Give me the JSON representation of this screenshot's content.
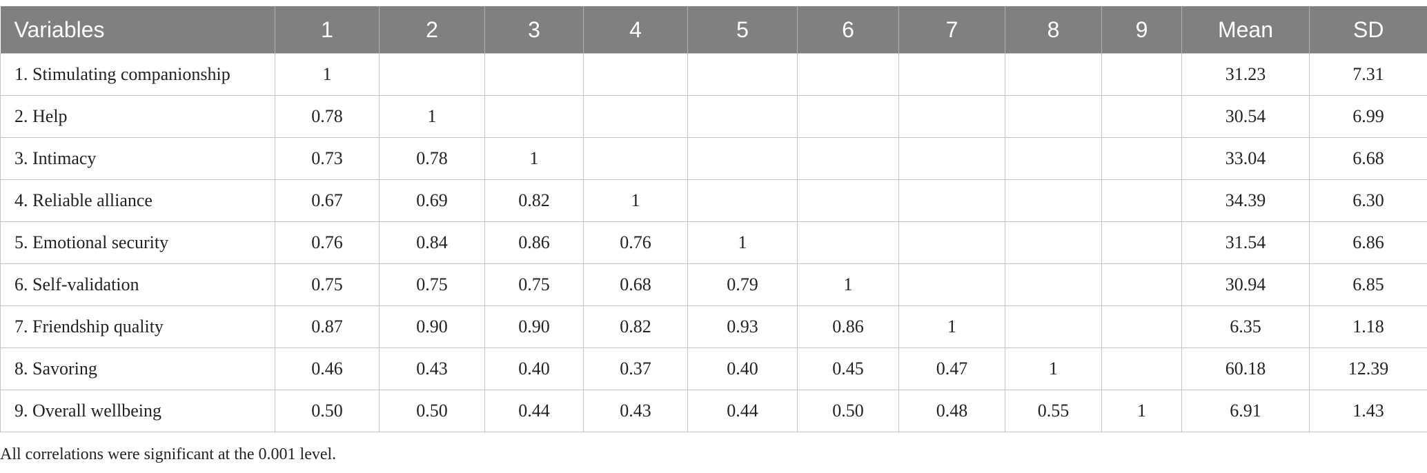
{
  "table": {
    "header": [
      "Variables",
      "1",
      "2",
      "3",
      "4",
      "5",
      "6",
      "7",
      "8",
      "9",
      "Mean",
      "SD"
    ],
    "rows": [
      {
        "label": "1. Stimulating companionship",
        "correlations": [
          "1"
        ],
        "mean": "31.23",
        "sd": "7.31"
      },
      {
        "label": "2. Help",
        "correlations": [
          "0.78",
          "1"
        ],
        "mean": "30.54",
        "sd": "6.99"
      },
      {
        "label": "3. Intimacy",
        "correlations": [
          "0.73",
          "0.78",
          "1"
        ],
        "mean": "33.04",
        "sd": "6.68"
      },
      {
        "label": "4. Reliable alliance",
        "correlations": [
          "0.67",
          "0.69",
          "0.82",
          "1"
        ],
        "mean": "34.39",
        "sd": "6.30"
      },
      {
        "label": "5. Emotional security",
        "correlations": [
          "0.76",
          "0.84",
          "0.86",
          "0.76",
          "1"
        ],
        "mean": "31.54",
        "sd": "6.86"
      },
      {
        "label": "6. Self-validation",
        "correlations": [
          "0.75",
          "0.75",
          "0.75",
          "0.68",
          "0.79",
          "1"
        ],
        "mean": "30.94",
        "sd": "6.85"
      },
      {
        "label": "7. Friendship quality",
        "correlations": [
          "0.87",
          "0.90",
          "0.90",
          "0.82",
          "0.93",
          "0.86",
          "1"
        ],
        "mean": "6.35",
        "sd": "1.18"
      },
      {
        "label": "8. Savoring",
        "correlations": [
          "0.46",
          "0.43",
          "0.40",
          "0.37",
          "0.40",
          "0.45",
          "0.47",
          "1"
        ],
        "mean": "60.18",
        "sd": "12.39"
      },
      {
        "label": "9. Overall wellbeing",
        "correlations": [
          "0.50",
          "0.50",
          "0.44",
          "0.43",
          "0.44",
          "0.50",
          "0.48",
          "0.55",
          "1"
        ],
        "mean": "6.91",
        "sd": "1.43"
      }
    ],
    "footnote": "All correlations were significant at the 0.001 level."
  }
}
